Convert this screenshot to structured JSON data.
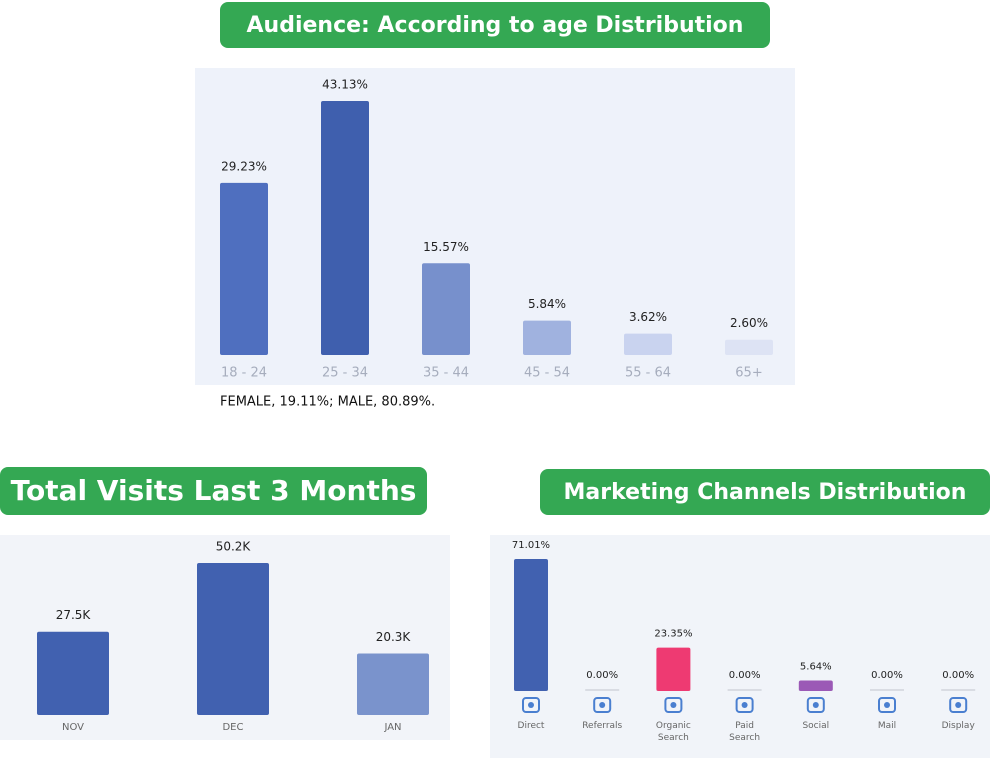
{
  "chart_data": [
    {
      "type": "bar",
      "title": "Audience: According to age Distribution",
      "categories": [
        "18 - 24",
        "25 - 34",
        "35 - 44",
        "45 - 54",
        "55 - 64",
        "65+"
      ],
      "values": [
        29.23,
        43.13,
        15.57,
        5.84,
        3.62,
        2.6
      ],
      "value_labels": [
        "29.23%",
        "43.13%",
        "15.57%",
        "5.84%",
        "3.62%",
        "2.60%"
      ],
      "colors": [
        "#4f6fbf",
        "#3f5fae",
        "#7790cc",
        "#a0b2df",
        "#c9d3ef",
        "#dde3f4"
      ],
      "note": "FEMALE, 19.11%; MALE, 80.89%."
    },
    {
      "type": "bar",
      "title": "Total Visits Last 3 Months",
      "categories": [
        "NOV",
        "DEC",
        "JAN"
      ],
      "values": [
        27500,
        50200,
        20300
      ],
      "value_labels": [
        "27.5K",
        "50.2K",
        "20.3K"
      ],
      "colors": [
        "#4161b0",
        "#4161b0",
        "#7a93cc"
      ]
    },
    {
      "type": "bar",
      "title": "Marketing Channels Distribution",
      "categories": [
        "Direct",
        "Referrals",
        "Organic Search",
        "Paid Search",
        "Social",
        "Mail",
        "Display"
      ],
      "values": [
        71.01,
        0,
        23.35,
        0,
        5.64,
        0,
        0
      ],
      "value_labels": [
        "71.01%",
        "0.00%",
        "23.35%",
        "0.00%",
        "5.64%",
        "0.00%",
        "0.00%"
      ],
      "colors": [
        "#4161b0",
        "#cccccc",
        "#ee3a72",
        "#cccccc",
        "#9b59b6",
        "#cccccc",
        "#cccccc"
      ]
    }
  ]
}
